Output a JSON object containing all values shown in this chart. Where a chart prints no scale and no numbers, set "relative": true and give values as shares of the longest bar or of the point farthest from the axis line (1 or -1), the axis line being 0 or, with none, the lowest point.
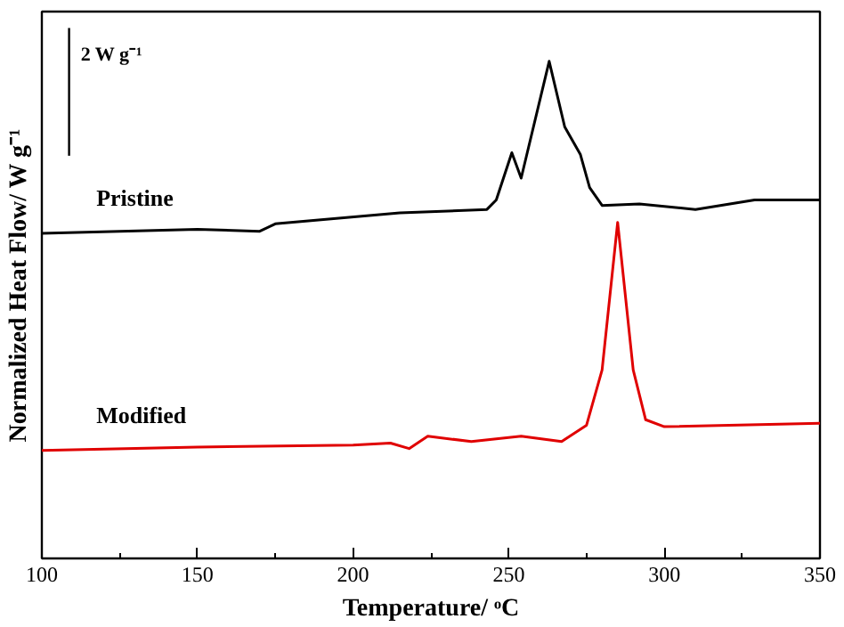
{
  "chart_data": {
    "type": "line",
    "relative": true,
    "xlabel": "Temperature/ ᵒC",
    "ylabel": "Normalized Heat Flow/ W g⁻¹",
    "annotations": [
      "2 W g⁻¹"
    ],
    "xlim": [
      100,
      350
    ],
    "xticks": [
      100,
      150,
      200,
      250,
      300,
      350
    ],
    "grid": false,
    "series": [
      {
        "name": "Pristine",
        "color": "#000000",
        "x": [
          100,
          150,
          170,
          175,
          215,
          243,
          246,
          251,
          254,
          263,
          268,
          273,
          276,
          280,
          292,
          310,
          329,
          350
        ],
        "values": [
          0.654,
          0.662,
          0.658,
          0.673,
          0.695,
          0.702,
          0.721,
          0.816,
          0.765,
          1,
          0.868,
          0.813,
          0.746,
          0.71,
          0.713,
          0.702,
          0.721,
          0.721
        ]
      },
      {
        "name": "Modified",
        "color": "#e00000",
        "x": [
          100,
          150,
          200,
          212,
          218,
          224,
          238,
          254,
          267,
          275,
          280,
          285,
          290,
          294,
          300,
          350
        ],
        "values": [
          0.217,
          0.224,
          0.228,
          0.232,
          0.221,
          0.246,
          0.235,
          0.246,
          0.235,
          0.268,
          0.379,
          0.676,
          0.379,
          0.279,
          0.265,
          0.272
        ]
      }
    ]
  }
}
